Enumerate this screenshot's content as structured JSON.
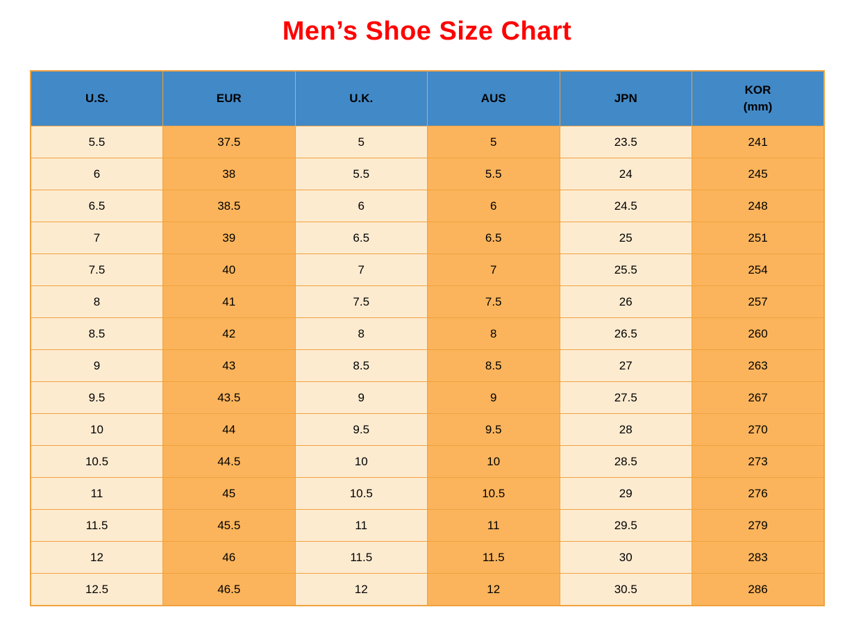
{
  "title": "Men’s Shoe Size Chart",
  "colors": {
    "title": "#ff0000",
    "header_bg": "#4289c7",
    "header_text": "#000000",
    "cell_light": "#fdebd0",
    "cell_orange": "#fbb45c",
    "border": "#f0a23e",
    "page_bg": "#ffffff"
  },
  "table": {
    "headers": [
      {
        "label": "U.S.",
        "sub": ""
      },
      {
        "label": "EUR",
        "sub": ""
      },
      {
        "label": "U.K.",
        "sub": ""
      },
      {
        "label": "AUS",
        "sub": ""
      },
      {
        "label": "JPN",
        "sub": ""
      },
      {
        "label": "KOR",
        "sub": "(mm)"
      }
    ],
    "rows": [
      [
        "5.5",
        "37.5",
        "5",
        "5",
        "23.5",
        "241"
      ],
      [
        "6",
        "38",
        "5.5",
        "5.5",
        "24",
        "245"
      ],
      [
        "6.5",
        "38.5",
        "6",
        "6",
        "24.5",
        "248"
      ],
      [
        "7",
        "39",
        "6.5",
        "6.5",
        "25",
        "251"
      ],
      [
        "7.5",
        "40",
        "7",
        "7",
        "25.5",
        "254"
      ],
      [
        "8",
        "41",
        "7.5",
        "7.5",
        "26",
        "257"
      ],
      [
        "8.5",
        "42",
        "8",
        "8",
        "26.5",
        "260"
      ],
      [
        "9",
        "43",
        "8.5",
        "8.5",
        "27",
        "263"
      ],
      [
        "9.5",
        "43.5",
        "9",
        "9",
        "27.5",
        "267"
      ],
      [
        "10",
        "44",
        "9.5",
        "9.5",
        "28",
        "270"
      ],
      [
        "10.5",
        "44.5",
        "10",
        "10",
        "28.5",
        "273"
      ],
      [
        "11",
        "45",
        "10.5",
        "10.5",
        "29",
        "276"
      ],
      [
        "11.5",
        "45.5",
        "11",
        "11",
        "29.5",
        "279"
      ],
      [
        "12",
        "46",
        "11.5",
        "11.5",
        "30",
        "283"
      ],
      [
        "12.5",
        "46.5",
        "12",
        "12",
        "30.5",
        "286"
      ]
    ]
  },
  "chart_data": {
    "type": "table",
    "title": "Men’s Shoe Size Chart",
    "columns": [
      "U.S.",
      "EUR",
      "U.K.",
      "AUS",
      "JPN",
      "KOR (mm)"
    ],
    "rows": [
      [
        5.5,
        37.5,
        5,
        5,
        23.5,
        241
      ],
      [
        6,
        38,
        5.5,
        5.5,
        24,
        245
      ],
      [
        6.5,
        38.5,
        6,
        6,
        24.5,
        248
      ],
      [
        7,
        39,
        6.5,
        6.5,
        25,
        251
      ],
      [
        7.5,
        40,
        7,
        7,
        25.5,
        254
      ],
      [
        8,
        41,
        7.5,
        7.5,
        26,
        257
      ],
      [
        8.5,
        42,
        8,
        8,
        26.5,
        260
      ],
      [
        9,
        43,
        8.5,
        8.5,
        27,
        263
      ],
      [
        9.5,
        43.5,
        9,
        9,
        27.5,
        267
      ],
      [
        10,
        44,
        9.5,
        9.5,
        28,
        270
      ],
      [
        10.5,
        44.5,
        10,
        10,
        28.5,
        273
      ],
      [
        11,
        45,
        10.5,
        10.5,
        29,
        276
      ],
      [
        11.5,
        45.5,
        11,
        11,
        29.5,
        279
      ],
      [
        12,
        46,
        11.5,
        11.5,
        30,
        283
      ],
      [
        12.5,
        46.5,
        12,
        12,
        30.5,
        286
      ]
    ]
  }
}
